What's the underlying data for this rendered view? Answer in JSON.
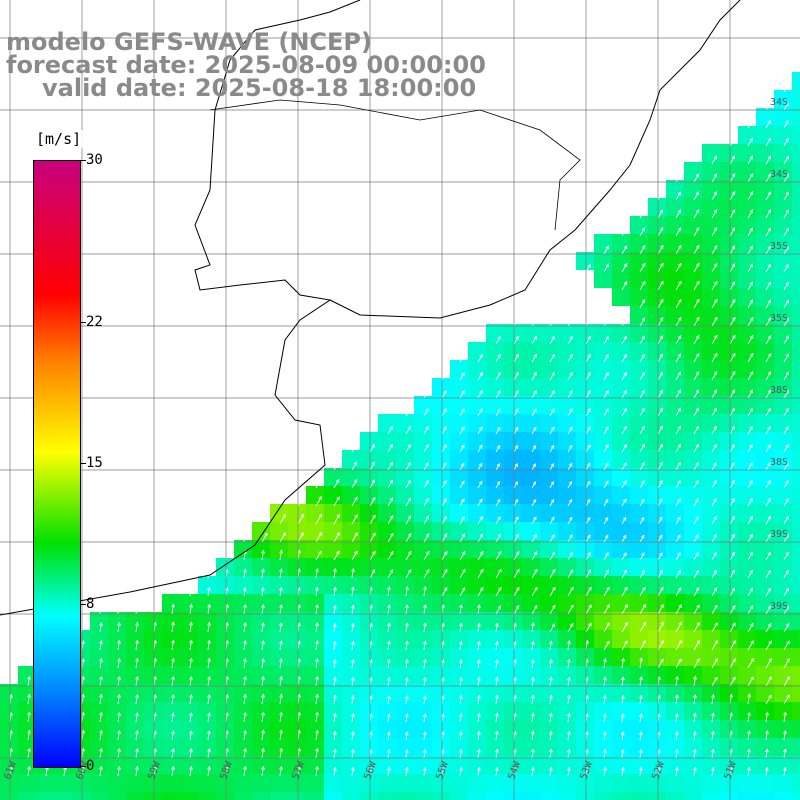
{
  "title": {
    "line1": "modelo GEFS-WAVE (NCEP)",
    "line2": "forecast date: 2025-08-09 00:00:00",
    "line3": "valid date: 2025-08-18 18:00:00"
  },
  "colorbar": {
    "unit": "[m/s]",
    "ticks": [
      "30",
      "22",
      "15",
      "8",
      "0"
    ],
    "tick_values": [
      30,
      22,
      15,
      8,
      0
    ],
    "range": [
      0,
      30
    ],
    "colors": [
      "#0000ff",
      "#0080ff",
      "#00ffff",
      "#00e000",
      "#ffff00",
      "#ff8000",
      "#ff0000",
      "#c8007e"
    ]
  },
  "map": {
    "variable": "wind speed",
    "land_color": "#ffffff",
    "grid_color": "#7a7a7a",
    "coast_color": "#000000",
    "arrow_color": "#ffffff",
    "lat_labels": [
      "34S",
      "34S",
      "35S",
      "35S",
      "38S",
      "38S",
      "39S",
      "39S"
    ],
    "lon_labels": [
      "61W",
      "60W",
      "59W",
      "58W",
      "57W",
      "56W",
      "55W",
      "54W",
      "53W",
      "52W",
      "51W"
    ]
  }
}
